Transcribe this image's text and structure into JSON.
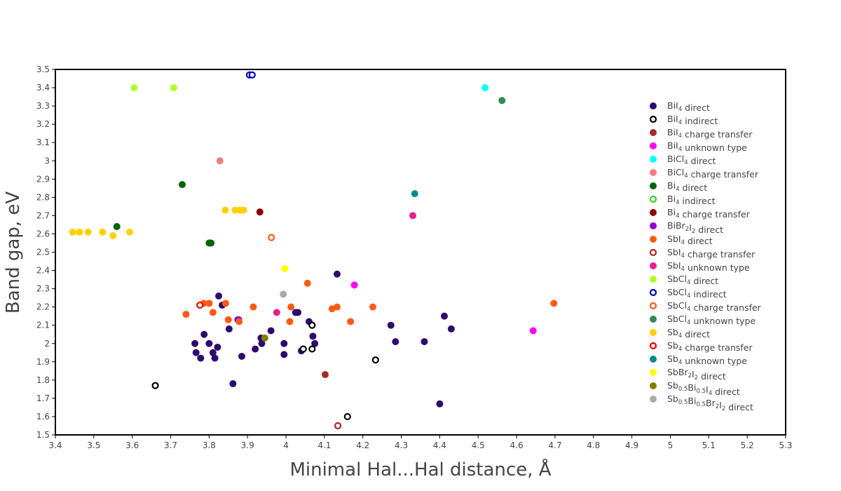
{
  "chart_data": {
    "type": "scatter",
    "xlabel": "Minimal Hal...Hal distance, Å",
    "ylabel": "Band gap, eV",
    "xlim": [
      3.4,
      5.3
    ],
    "ylim": [
      1.5,
      3.5
    ],
    "x_ticks": [
      "3.4",
      "3.5",
      "3.6",
      "3.7",
      "3.8",
      "3.9",
      "4",
      "4.1",
      "4.2",
      "4.3",
      "4.4",
      "4.5",
      "4.6",
      "4.7",
      "4.8",
      "4.9",
      "5",
      "5.1",
      "5.2",
      "5.3"
    ],
    "y_ticks": [
      "1.5",
      "1.6",
      "1.7",
      "1.8",
      "1.9",
      "2",
      "2.1",
      "2.2",
      "2.3",
      "2.4",
      "2.5",
      "2.6",
      "2.7",
      "2.8",
      "2.9",
      "3",
      "3.1",
      "3.2",
      "3.3",
      "3.4",
      "3.5"
    ],
    "grid": false,
    "legend_position": "right",
    "series": [
      {
        "name": "BiI4 direct",
        "label": {
          "base": "BiI",
          "sub": "4",
          "rest": " direct"
        },
        "color": "#2d0a6e",
        "filled": true,
        "points": [
          [
            3.763,
            2.0
          ],
          [
            3.766,
            1.95
          ],
          [
            3.787,
            2.05
          ],
          [
            3.778,
            1.92
          ],
          [
            3.8,
            2.0
          ],
          [
            3.81,
            1.95
          ],
          [
            3.815,
            1.92
          ],
          [
            3.822,
            1.98
          ],
          [
            3.825,
            2.26
          ],
          [
            3.834,
            2.21
          ],
          [
            3.852,
            2.08
          ],
          [
            3.862,
            1.78
          ],
          [
            3.875,
            2.13
          ],
          [
            3.885,
            1.93
          ],
          [
            3.92,
            1.97
          ],
          [
            3.937,
            2.0
          ],
          [
            3.935,
            2.03
          ],
          [
            3.961,
            2.07
          ],
          [
            3.995,
            2.0
          ],
          [
            3.995,
            1.94
          ],
          [
            4.025,
            2.17
          ],
          [
            4.031,
            2.17
          ],
          [
            4.04,
            1.96
          ],
          [
            4.06,
            2.12
          ],
          [
            4.07,
            2.04
          ],
          [
            4.075,
            2.0
          ],
          [
            4.133,
            2.38
          ],
          [
            4.273,
            2.1
          ],
          [
            4.285,
            2.01
          ],
          [
            4.36,
            2.01
          ],
          [
            4.4,
            1.67
          ],
          [
            4.412,
            2.15
          ],
          [
            4.43,
            2.08
          ]
        ]
      },
      {
        "name": "BiI4 indirect",
        "label": {
          "base": "BiI",
          "sub": "4",
          "rest": " indirect"
        },
        "color": "#000000",
        "filled": false,
        "points": [
          [
            3.66,
            1.77
          ],
          [
            4.045,
            1.97
          ],
          [
            4.068,
            2.1
          ],
          [
            4.068,
            1.97
          ],
          [
            4.16,
            1.6
          ],
          [
            4.233,
            1.91
          ]
        ]
      },
      {
        "name": "BiI4 charge transfer",
        "label": {
          "base": "BiI",
          "sub": "4",
          "rest": " charge transfer"
        },
        "color": "#a52a2a",
        "filled": true,
        "points": [
          [
            4.102,
            1.83
          ]
        ]
      },
      {
        "name": "BiI4 unknown type",
        "label": {
          "base": "BiI",
          "sub": "4",
          "rest": " unknown type"
        },
        "color": "#ff00ff",
        "filled": true,
        "points": [
          [
            4.178,
            2.32
          ],
          [
            4.643,
            2.07
          ]
        ]
      },
      {
        "name": "BiCl4 direct",
        "label": {
          "base": "BiCl",
          "sub": "4",
          "rest": " direct"
        },
        "color": "#00ffff",
        "filled": true,
        "points": [
          [
            4.518,
            3.4
          ]
        ]
      },
      {
        "name": "BiCl4 charge transfer",
        "label": {
          "base": "BiCl",
          "sub": "4",
          "rest": " charge transfer"
        },
        "color": "#f08080",
        "filled": true,
        "points": [
          [
            3.828,
            3.0
          ]
        ]
      },
      {
        "name": "Bi4 direct",
        "label": {
          "base": "Bi",
          "sub": "4",
          "rest": " direct"
        },
        "color": "#006400",
        "filled": true,
        "points": [
          [
            3.56,
            2.64
          ],
          [
            3.73,
            2.87
          ],
          [
            3.8,
            2.55
          ],
          [
            3.805,
            2.55
          ]
        ]
      },
      {
        "name": "Bi4 indirect",
        "label": {
          "base": "Bi",
          "sub": "4",
          "rest": " indirect"
        },
        "color": "#32cd32",
        "filled": false,
        "points": []
      },
      {
        "name": "Bi4 charge transfer",
        "label": {
          "base": "Bi",
          "sub": "4",
          "rest": " charge transfer"
        },
        "color": "#8b0000",
        "filled": true,
        "points": [
          [
            3.932,
            2.72
          ]
        ]
      },
      {
        "name": "BiBr2I2 direct",
        "label": {
          "base": "BiBr",
          "sub": "2",
          "rest": "I",
          "sub2": "2",
          "rest2": " direct"
        },
        "color": "#9400d3",
        "filled": true,
        "points": [
          [
            3.877,
            2.13
          ]
        ]
      },
      {
        "name": "SbI4 direct",
        "label": {
          "base": "SbI",
          "sub": "4",
          "rest": " direct"
        },
        "color": "#ff5a14",
        "filled": true,
        "points": [
          [
            3.74,
            2.16
          ],
          [
            3.786,
            2.22
          ],
          [
            3.8,
            2.22
          ],
          [
            3.81,
            2.17
          ],
          [
            3.843,
            2.22
          ],
          [
            3.85,
            2.13
          ],
          [
            3.878,
            2.12
          ],
          [
            3.915,
            2.2
          ],
          [
            4.01,
            2.12
          ],
          [
            4.013,
            2.2
          ],
          [
            4.056,
            2.33
          ],
          [
            4.12,
            2.19
          ],
          [
            4.133,
            2.2
          ],
          [
            4.168,
            2.12
          ],
          [
            4.226,
            2.2
          ],
          [
            4.697,
            2.22
          ]
        ]
      },
      {
        "name": "SbI4 charge transfer",
        "label": {
          "base": "SbI",
          "sub": "4",
          "rest": " charge transfer"
        },
        "color": "#b22222",
        "filled": false,
        "points": [
          [
            4.135,
            1.55
          ]
        ]
      },
      {
        "name": "SbI4 unknown type",
        "label": {
          "base": "SbI",
          "sub": "4",
          "rest": " unknown type"
        },
        "color": "#e91e8c",
        "filled": true,
        "points": [
          [
            3.976,
            2.17
          ],
          [
            4.33,
            2.7
          ]
        ]
      },
      {
        "name": "SbCl4 direct",
        "label": {
          "base": "SbCl",
          "sub": "4",
          "rest": " direct"
        },
        "color": "#adff2f",
        "filled": true,
        "points": [
          [
            3.605,
            3.4
          ],
          [
            3.708,
            3.4
          ]
        ]
      },
      {
        "name": "SbCl4 indirect",
        "label": {
          "base": "SbCl",
          "sub": "4",
          "rest": " indirect"
        },
        "color": "#0000cd",
        "filled": false,
        "points": [
          [
            3.905,
            3.47
          ],
          [
            3.912,
            3.47
          ]
        ]
      },
      {
        "name": "SbCl4 charge transfer",
        "label": {
          "base": "SbCl",
          "sub": "4",
          "rest": " charge transfer"
        },
        "color": "#ff5a14",
        "filled": false,
        "points": [
          [
            3.962,
            2.58
          ]
        ]
      },
      {
        "name": "SbCl4 unknown type",
        "label": {
          "base": "SbCl",
          "sub": "4",
          "rest": " unknown type"
        },
        "color": "#2e8b57",
        "filled": true,
        "points": [
          [
            4.562,
            3.33
          ]
        ]
      },
      {
        "name": "Sb4 direct",
        "label": {
          "base": "Sb",
          "sub": "4",
          "rest": " direct"
        },
        "color": "#ffd000",
        "filled": true,
        "points": [
          [
            3.445,
            2.61
          ],
          [
            3.463,
            2.61
          ],
          [
            3.485,
            2.61
          ],
          [
            3.523,
            2.61
          ],
          [
            3.55,
            2.59
          ],
          [
            3.593,
            2.61
          ],
          [
            3.842,
            2.73
          ],
          [
            3.868,
            2.73
          ],
          [
            3.88,
            2.73
          ],
          [
            3.89,
            2.73
          ]
        ]
      },
      {
        "name": "Sb4 charge transfer",
        "label": {
          "base": "Sb",
          "sub": "4",
          "rest": " charge transfer"
        },
        "color": "#ee0000",
        "filled": false,
        "points": [
          [
            3.776,
            2.21
          ]
        ]
      },
      {
        "name": "Sb4 unknown type",
        "label": {
          "base": "Sb",
          "sub": "4",
          "rest": " unknown type"
        },
        "color": "#008b8b",
        "filled": true,
        "points": [
          [
            4.335,
            2.82
          ]
        ]
      },
      {
        "name": "SbBr2I2 direct",
        "label": {
          "base": "SbBr",
          "sub": "2",
          "rest": "I",
          "sub2": "2",
          "rest2": " direct"
        },
        "color": "#ffff00",
        "filled": true,
        "points": [
          [
            3.997,
            2.41
          ]
        ]
      },
      {
        "name": "Sb0.5Bi0.5I4 direct",
        "label": {
          "base": "Sb",
          "sub": "0.5",
          "rest": "Bi",
          "sub2": "0.5",
          "rest2": "I",
          "sub3": "4",
          "rest3": " direct"
        },
        "color": "#808000",
        "filled": true,
        "points": [
          [
            3.945,
            2.03
          ]
        ]
      },
      {
        "name": "Sb0.5Bi0.5Br2I2 direct",
        "label": {
          "base": "Sb",
          "sub": "0.5",
          "rest": "Bi",
          "sub2": "0.5",
          "rest2": "Br",
          "sub3": "2",
          "rest3": "I",
          "sub4": "2",
          "rest4": " direct"
        },
        "color": "#a9a9a9",
        "filled": true,
        "points": [
          [
            3.993,
            2.27
          ]
        ]
      }
    ]
  }
}
